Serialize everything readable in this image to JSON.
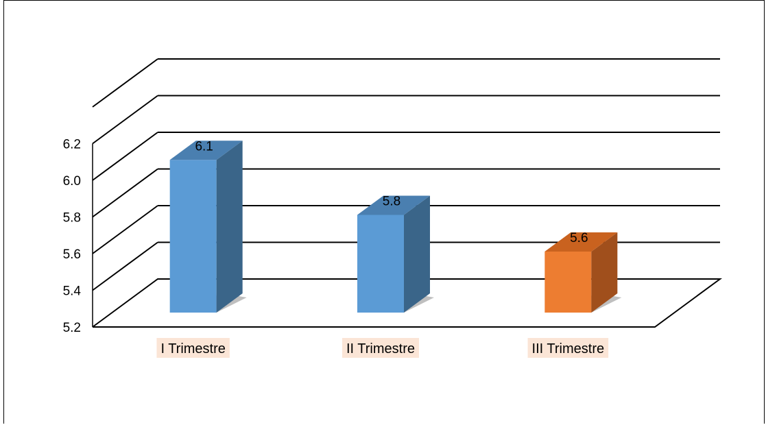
{
  "chart_data": {
    "type": "bar",
    "style": "3d-column",
    "categories": [
      "I Trimestre",
      "II Trimestre",
      "III Trimestre"
    ],
    "values": [
      6.1,
      5.8,
      5.6
    ],
    "data_labels": [
      "6.1",
      "5.8",
      "5.6"
    ],
    "y_ticks": [
      "5.2",
      "5.4",
      "5.6",
      "5.8",
      "6.0",
      "6.2"
    ],
    "ylim": [
      5.2,
      6.2
    ],
    "grid": true,
    "legend": "none",
    "colors": {
      "blue_front": "#5b9bd5",
      "blue_side": "#3a6589",
      "blue_top": "#4a7fb0",
      "orange_front": "#ed7d31",
      "orange_side": "#a04f1c",
      "orange_top": "#c9621f",
      "category_label_bg": "#fbe5d6"
    },
    "bar_colors": [
      "blue",
      "blue",
      "orange"
    ]
  }
}
